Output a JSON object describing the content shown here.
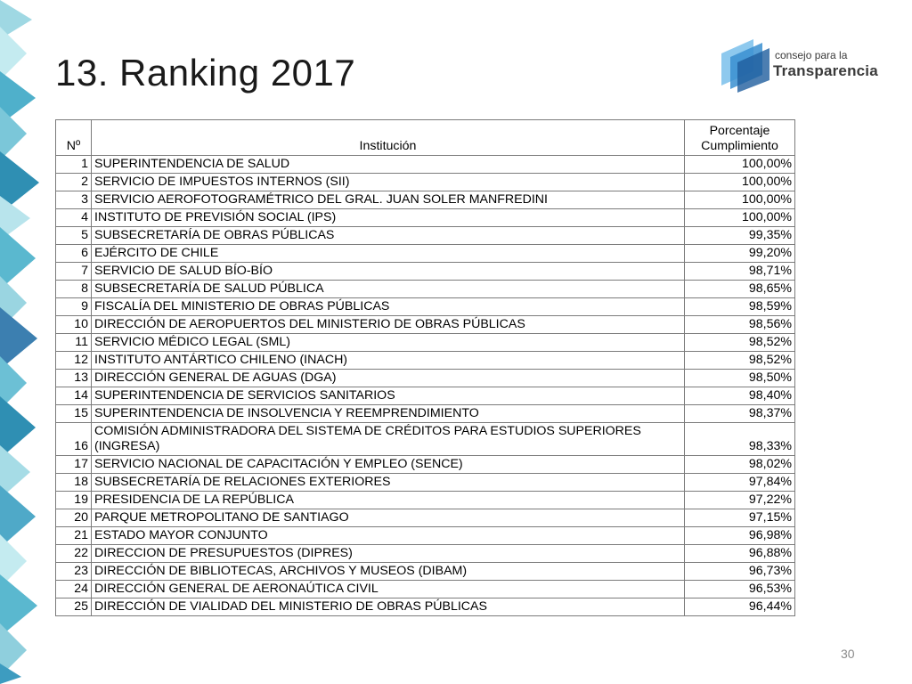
{
  "slide": {
    "title": "13. Ranking 2017",
    "page_number": "30"
  },
  "logo": {
    "line1": "consejo para la",
    "line2": "Transparencia"
  },
  "table": {
    "headers": {
      "number": "Nº",
      "institution": "Institución",
      "percent": "Porcentaje Cumplimiento"
    },
    "rows": [
      {
        "n": "1",
        "institution": "SUPERINTENDENCIA DE SALUD",
        "percent": "100,00%"
      },
      {
        "n": "2",
        "institution": "SERVICIO DE IMPUESTOS INTERNOS (SII)",
        "percent": "100,00%"
      },
      {
        "n": "3",
        "institution": "SERVICIO AEROFOTOGRAMÉTRICO DEL GRAL. JUAN SOLER MANFREDINI",
        "percent": "100,00%"
      },
      {
        "n": "4",
        "institution": "INSTITUTO DE PREVISIÓN SOCIAL (IPS)",
        "percent": "100,00%"
      },
      {
        "n": "5",
        "institution": "SUBSECRETARÍA DE OBRAS PÚBLICAS",
        "percent": "99,35%"
      },
      {
        "n": "6",
        "institution": "EJÉRCITO DE CHILE",
        "percent": "99,20%"
      },
      {
        "n": "7",
        "institution": "SERVICIO DE SALUD BÍO-BÍO",
        "percent": "98,71%"
      },
      {
        "n": "8",
        "institution": "SUBSECRETARÍA DE SALUD PÚBLICA",
        "percent": "98,65%"
      },
      {
        "n": "9",
        "institution": "FISCALÍA DEL MINISTERIO DE OBRAS PÚBLICAS",
        "percent": "98,59%"
      },
      {
        "n": "10",
        "institution": "DIRECCIÓN DE AEROPUERTOS DEL MINISTERIO DE OBRAS PÚBLICAS",
        "percent": "98,56%"
      },
      {
        "n": "11",
        "institution": "SERVICIO MÉDICO LEGAL (SML)",
        "percent": "98,52%"
      },
      {
        "n": "12",
        "institution": "INSTITUTO ANTÁRTICO CHILENO (INACH)",
        "percent": "98,52%"
      },
      {
        "n": "13",
        "institution": "DIRECCIÓN GENERAL DE AGUAS (DGA)",
        "percent": "98,50%"
      },
      {
        "n": "14",
        "institution": "SUPERINTENDENCIA DE SERVICIOS SANITARIOS",
        "percent": "98,40%"
      },
      {
        "n": "15",
        "institution": "SUPERINTENDENCIA DE INSOLVENCIA Y REEMPRENDIMIENTO",
        "percent": "98,37%"
      },
      {
        "n": "16",
        "institution": "COMISIÓN ADMINISTRADORA DEL SISTEMA DE CRÉDITOS PARA ESTUDIOS SUPERIORES (INGRESA)",
        "percent": "98,33%"
      },
      {
        "n": "17",
        "institution": "SERVICIO NACIONAL DE CAPACITACIÓN Y EMPLEO (SENCE)",
        "percent": "98,02%"
      },
      {
        "n": "18",
        "institution": "SUBSECRETARÍA DE RELACIONES EXTERIORES",
        "percent": "97,84%"
      },
      {
        "n": "19",
        "institution": "PRESIDENCIA DE LA REPÚBLICA",
        "percent": "97,22%"
      },
      {
        "n": "20",
        "institution": "PARQUE METROPOLITANO DE SANTIAGO",
        "percent": "97,15%"
      },
      {
        "n": "21",
        "institution": "ESTADO MAYOR CONJUNTO",
        "percent": "96,98%"
      },
      {
        "n": "22",
        "institution": "DIRECCION DE PRESUPUESTOS (DIPRES)",
        "percent": "96,88%"
      },
      {
        "n": "23",
        "institution": "DIRECCIÓN DE BIBLIOTECAS, ARCHIVOS Y MUSEOS (DIBAM)",
        "percent": "96,73%"
      },
      {
        "n": "24",
        "institution": "DIRECCIÓN GENERAL DE AERONAÚTICA CIVIL",
        "percent": "96,53%"
      },
      {
        "n": "25",
        "institution": "DIRECCIÓN DE VIALIDAD DEL MINISTERIO DE OBRAS PÚBLICAS",
        "percent": "96,44%"
      }
    ]
  },
  "colors": {
    "decor_light": "#a9dde6",
    "decor_mid": "#57b7cf",
    "decor_dark": "#2f8fb3",
    "logo_blue": "#3a8fd0"
  }
}
